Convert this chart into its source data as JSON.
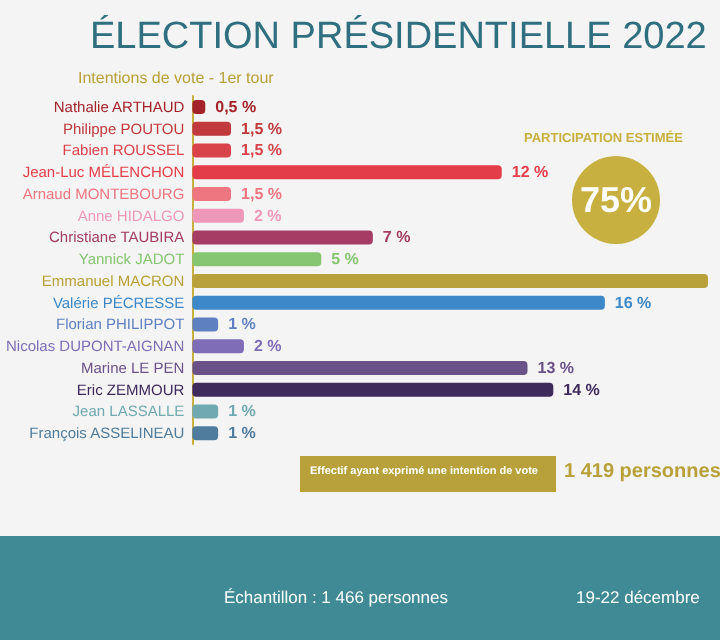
{
  "chart_data": {
    "type": "bar",
    "orientation": "horizontal",
    "title": "ÉLECTION PRÉSIDENTIELLE 2022",
    "subtitle": "Intentions de vote - 1er tour",
    "categories": [
      "Nathalie ARTHAUD",
      "Philippe POUTOU",
      "Fabien ROUSSEL",
      "Jean-Luc MÉLENCHON",
      "Arnaud MONTEBOURG",
      "Anne HIDALGO",
      "Christiane TAUBIRA",
      "Yannick JADOT",
      "Emmanuel MACRON",
      "Valérie PÉCRESSE",
      "Florian PHILIPPOT",
      "Nicolas DUPONT-AIGNAN",
      "Marine LE PEN",
      "Eric ZEMMOUR",
      "Jean LASSALLE",
      "François ASSELINEAU"
    ],
    "values": [
      0.5,
      1.5,
      1.5,
      12,
      1.5,
      2,
      7,
      5,
      20,
      16,
      1,
      2,
      13,
      14,
      1,
      1
    ],
    "value_labels": [
      "0,5 %",
      "1,5 %",
      "1,5 %",
      "12 %",
      "1,5 %",
      "2 %",
      "7 %",
      "5 %",
      null,
      "16 %",
      "1 %",
      "2 %",
      "13 %",
      "14 %",
      "1 %",
      "1 %"
    ],
    "colors": [
      "#a4232a",
      "#c0393d",
      "#d9434a",
      "#e33d4a",
      "#ee7680",
      "#ee97b9",
      "#a43c63",
      "#86c670",
      "#b8a13a",
      "#3c88c8",
      "#5f80c0",
      "#7f6db8",
      "#6a5289",
      "#3f2a5c",
      "#70aab0",
      "#4f7c9c"
    ],
    "annotations": [
      "PARTICIPATION ESTIMÉE",
      "75%",
      "Effectif ayant exprimé une intention de vote",
      "1 419 personnes",
      "Échantillon : 1 466 personnes",
      "19-22 décembre"
    ]
  }
}
